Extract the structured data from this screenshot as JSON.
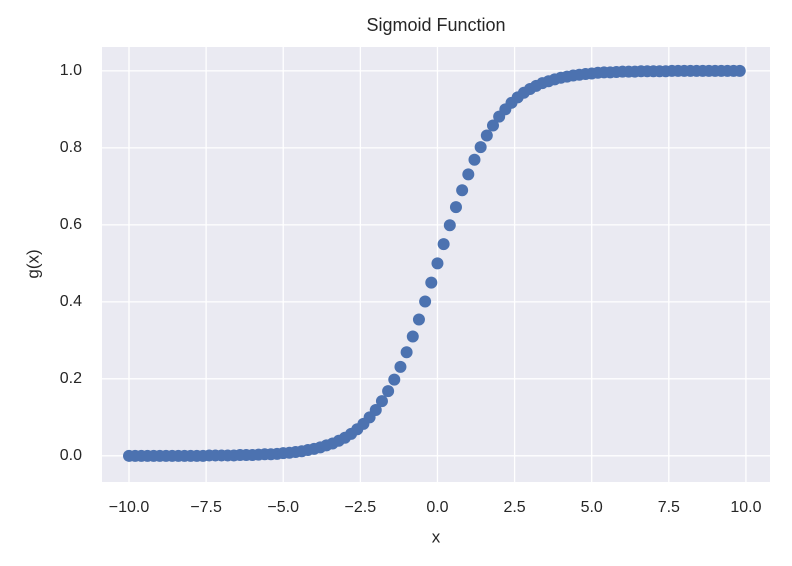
{
  "chart_data": {
    "type": "scatter",
    "title": "Sigmoid Function",
    "x_label": "x",
    "y_label": "g(x)",
    "x": [
      -10,
      -9.8,
      -9.6,
      -9.4,
      -9.2,
      -9,
      -8.8,
      -8.6,
      -8.4,
      -8.2,
      -8,
      -7.8,
      -7.6,
      -7.4,
      -7.2,
      -7,
      -6.8,
      -6.6,
      -6.4,
      -6.2,
      -6,
      -5.8,
      -5.6,
      -5.4,
      -5.2,
      -5,
      -4.8,
      -4.6,
      -4.4,
      -4.2,
      -4,
      -3.8,
      -3.6,
      -3.4,
      -3.2,
      -3,
      -2.8,
      -2.6,
      -2.4,
      -2.2,
      -2,
      -1.8,
      -1.6,
      -1.4,
      -1.2,
      -1,
      -0.8,
      -0.6,
      -0.4,
      -0.2,
      0,
      0.2,
      0.4,
      0.6,
      0.8,
      1,
      1.2,
      1.4,
      1.6,
      1.8,
      2,
      2.2,
      2.4,
      2.6,
      2.8,
      3,
      3.2,
      3.4,
      3.6,
      3.8,
      4,
      4.2,
      4.4,
      4.6,
      4.8,
      5,
      5.2,
      5.4,
      5.6,
      5.8,
      6,
      6.2,
      6.4,
      6.6,
      6.8,
      7,
      7.2,
      7.4,
      7.6,
      7.8,
      8,
      8.2,
      8.4,
      8.6,
      8.8,
      9,
      9.2,
      9.4,
      9.6,
      9.8
    ],
    "values": [
      0,
      0,
      0,
      0,
      0,
      0,
      0,
      0,
      0,
      0,
      0,
      0,
      0,
      0.001,
      0.001,
      0.001,
      0.001,
      0.001,
      0.002,
      0.002,
      0.002,
      0.003,
      0.004,
      0.004,
      0.005,
      0.007,
      0.008,
      0.01,
      0.012,
      0.015,
      0.018,
      0.022,
      0.027,
      0.032,
      0.039,
      0.047,
      0.057,
      0.069,
      0.083,
      0.1,
      0.119,
      0.142,
      0.168,
      0.198,
      0.231,
      0.269,
      0.31,
      0.354,
      0.401,
      0.45,
      0.5,
      0.55,
      0.599,
      0.646,
      0.69,
      0.731,
      0.769,
      0.802,
      0.832,
      0.858,
      0.881,
      0.9,
      0.917,
      0.931,
      0.943,
      0.953,
      0.961,
      0.968,
      0.973,
      0.978,
      0.982,
      0.985,
      0.988,
      0.99,
      0.992,
      0.993,
      0.995,
      0.996,
      0.996,
      0.997,
      0.998,
      0.998,
      0.998,
      0.999,
      0.999,
      0.999,
      0.999,
      0.999,
      1,
      1,
      1,
      1,
      1,
      1,
      1,
      1,
      1,
      1,
      1,
      1
    ],
    "color": "#4c72b0",
    "xlim": [
      -10.875,
      10.78
    ],
    "ylim": [
      -0.068,
      1.062
    ],
    "xticks": [
      {
        "value": -10,
        "label": "−10.0"
      },
      {
        "value": -7.5,
        "label": "−7.5"
      },
      {
        "value": -5,
        "label": "−5.0"
      },
      {
        "value": -2.5,
        "label": "−2.5"
      },
      {
        "value": 0,
        "label": "0.0"
      },
      2.5,
      {
        "value": 5,
        "label": "5.0"
      },
      7.5,
      {
        "value": 10,
        "label": "10.0"
      }
    ],
    "yticks": [
      {
        "value": 0,
        "label": "0.0"
      },
      0.2,
      0.4,
      0.6,
      0.8,
      {
        "value": 1,
        "label": "1.0"
      }
    ],
    "grid": true
  }
}
